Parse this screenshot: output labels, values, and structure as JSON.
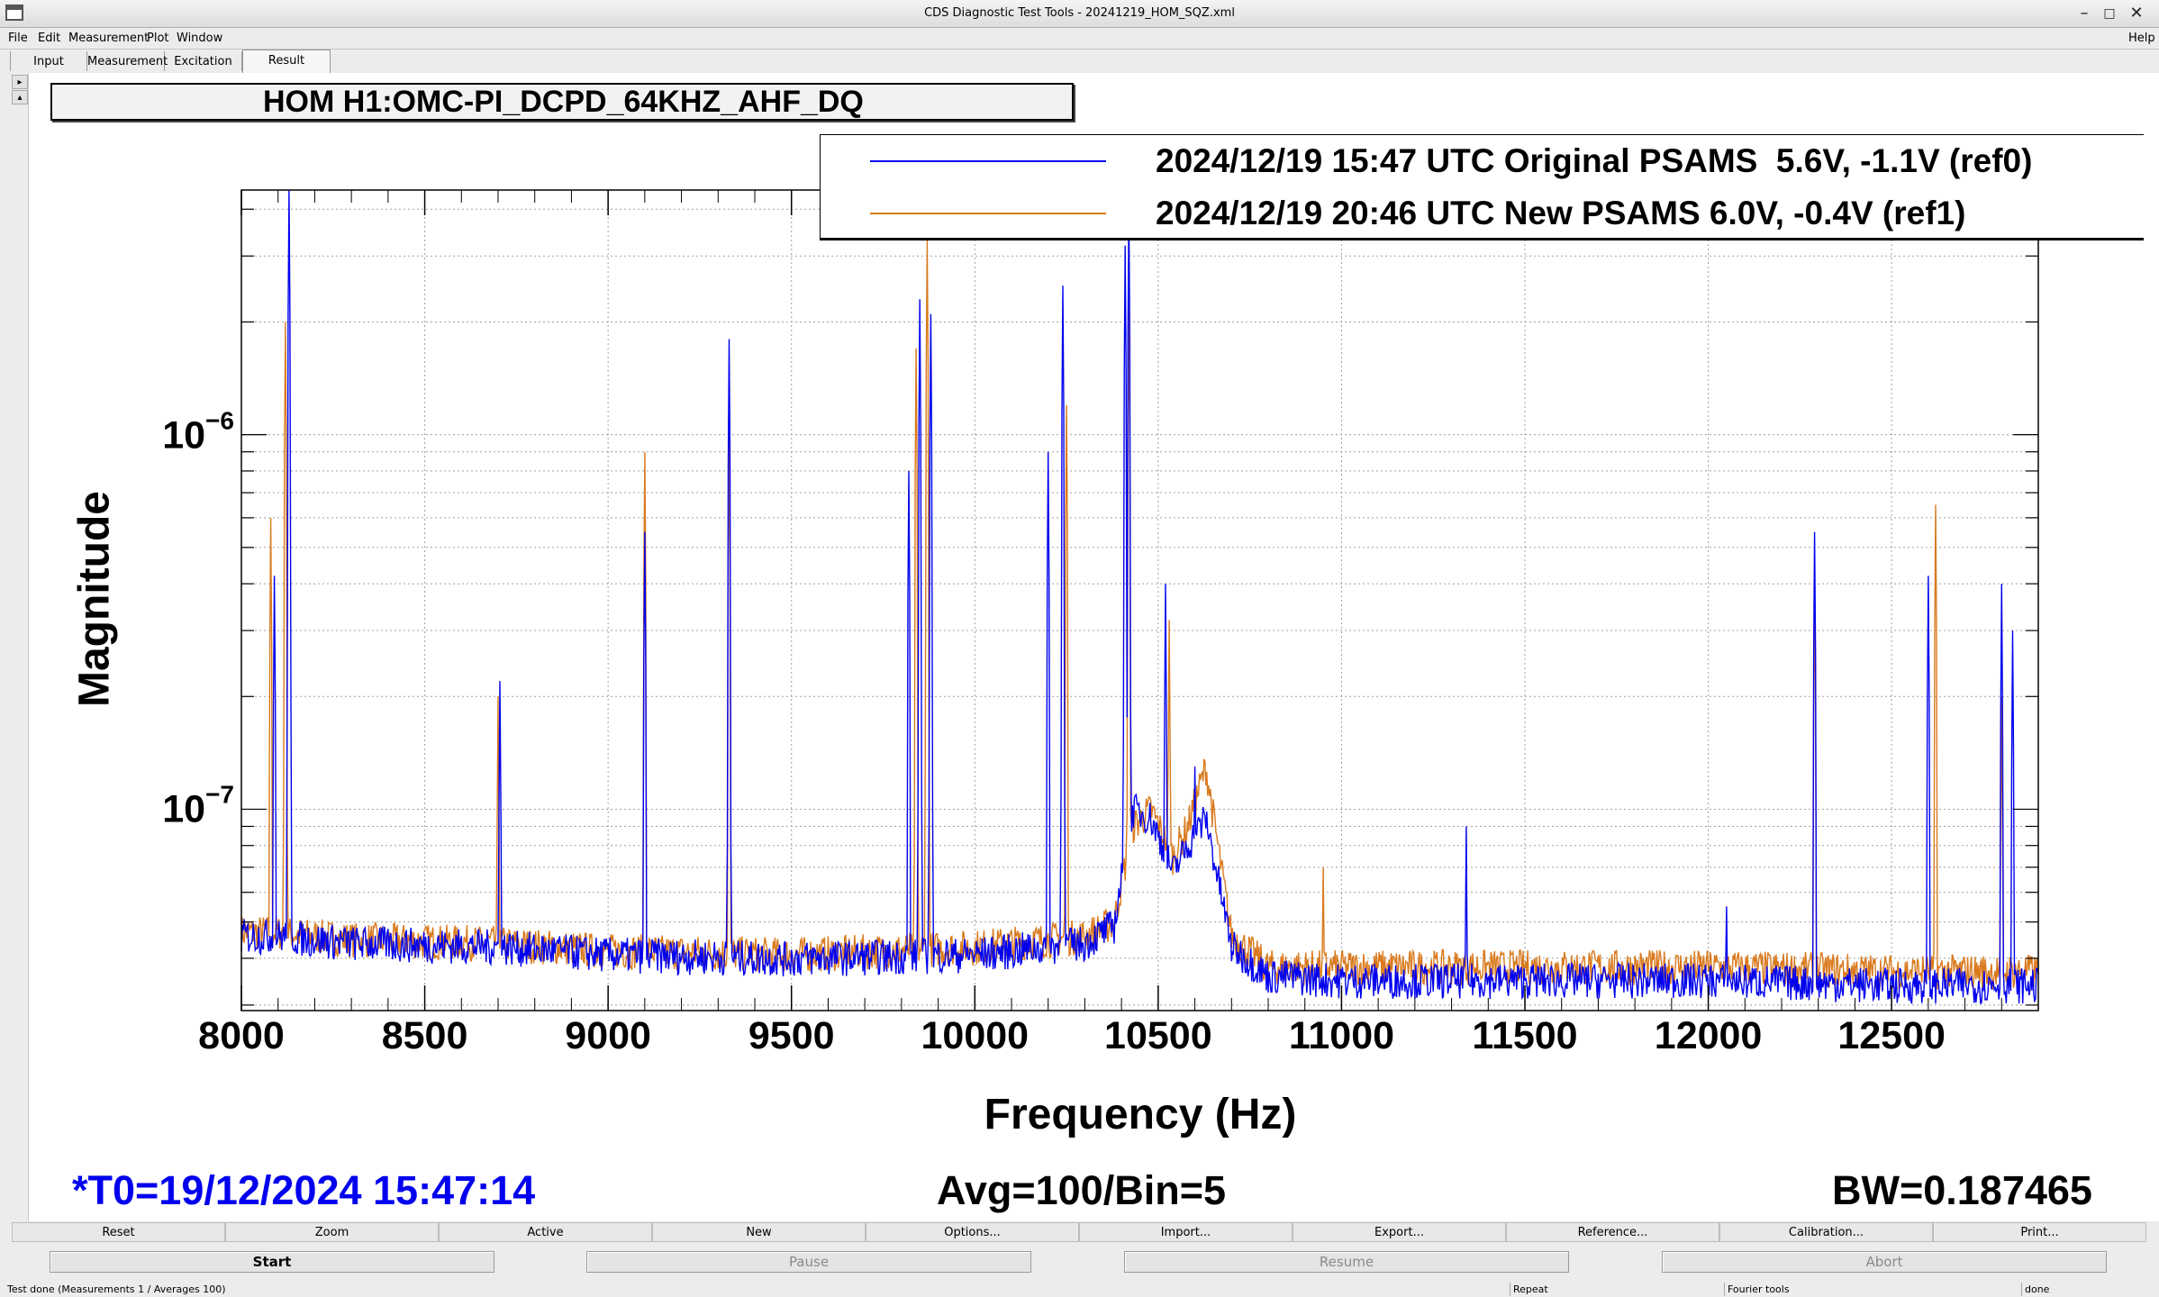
{
  "window": {
    "title": "CDS Diagnostic Test Tools - 20241219_HOM_SQZ.xml"
  },
  "menu": [
    {
      "label": "File"
    },
    {
      "label": "Edit"
    },
    {
      "label": "Measurement"
    },
    {
      "label": "Plot"
    },
    {
      "label": "Window"
    }
  ],
  "help_label": "Help",
  "tabs": [
    {
      "label": "Input"
    },
    {
      "label": "Measurement"
    },
    {
      "label": "Excitation"
    },
    {
      "label": "Result"
    }
  ],
  "plot": {
    "title": "HOM H1:OMC-PI_DCPD_64KHZ_AHF_DQ"
  },
  "legend": [
    {
      "label": "2024/12/19 15:47 UTC Original PSAMS  5.6V, -1.1V (ref0)",
      "color": "#0000ee"
    },
    {
      "label": "2024/12/19 20:46 UTC New PSAMS 6.0V, -0.4V (ref1)",
      "color": "#d97a1e"
    }
  ],
  "info": {
    "t0": "*T0=19/12/2024 15:47:14",
    "avg": "Avg=100/Bin=5",
    "bw": "BW=0.187465"
  },
  "toolbar_buttons": [
    {
      "label": "Reset"
    },
    {
      "label": "Zoom"
    },
    {
      "label": "Active"
    },
    {
      "label": "New"
    },
    {
      "label": "Options..."
    },
    {
      "label": "Import..."
    },
    {
      "label": "Export..."
    },
    {
      "label": "Reference..."
    },
    {
      "label": "Calibration..."
    },
    {
      "label": "Print..."
    }
  ],
  "control_buttons": [
    {
      "label": "Start"
    },
    {
      "label": "Pause"
    },
    {
      "label": "Resume"
    },
    {
      "label": "Abort"
    }
  ],
  "status": [
    {
      "label": "Test done (Measurements 1 / Averages 100)"
    },
    {
      "label": "Repeat"
    },
    {
      "label": "Fourier tools"
    },
    {
      "label": "done"
    }
  ],
  "chart_data": {
    "type": "line",
    "xlabel": "Frequency (Hz)",
    "ylabel": "Magnitude",
    "xlim": [
      8000,
      12900
    ],
    "ylim": [
      2.9e-08,
      4.5e-06
    ],
    "yscale": "log",
    "grid": true,
    "x_ticks": [
      8000,
      8500,
      9000,
      9500,
      10000,
      10500,
      11000,
      11500,
      12000,
      12500
    ],
    "y_tick_labels": [
      {
        "base": "10",
        "exp": "−6",
        "value": 1e-06
      },
      {
        "base": "10",
        "exp": "−7",
        "value": 1e-07
      }
    ],
    "legend_position": "top-right",
    "series": [
      {
        "name": "2024/12/19 15:47 UTC Original PSAMS  5.6V, -1.1V (ref0)",
        "color": "#0000ee",
        "floor": [
          [
            8000,
            4.6e-08
          ],
          [
            8100,
            4.6e-08
          ],
          [
            8300,
            4.4e-08
          ],
          [
            8700,
            4.3e-08
          ],
          [
            9000,
            4.1e-08
          ],
          [
            9500,
            4e-08
          ],
          [
            10000,
            4.1e-08
          ],
          [
            10300,
            4.4e-08
          ],
          [
            10380,
            4.9e-08
          ],
          [
            10430,
            1e-07
          ],
          [
            10480,
            9.5e-08
          ],
          [
            10540,
            6.8e-08
          ],
          [
            10580,
            8e-08
          ],
          [
            10630,
            9.5e-08
          ],
          [
            10700,
            4.3e-08
          ],
          [
            10800,
            3.6e-08
          ],
          [
            11000,
            3.5e-08
          ],
          [
            11500,
            3.5e-08
          ],
          [
            12000,
            3.5e-08
          ],
          [
            12500,
            3.4e-08
          ],
          [
            12900,
            3.4e-08
          ]
        ],
        "peaks": [
          [
            8130,
            4.5e-06
          ],
          [
            8090,
            4.2e-07
          ],
          [
            8705,
            2.2e-07
          ],
          [
            9100,
            5.5e-07
          ],
          [
            9330,
            1.8e-06
          ],
          [
            9820,
            8e-07
          ],
          [
            9850,
            2.3e-06
          ],
          [
            9880,
            2.1e-06
          ],
          [
            10240,
            2.5e-06
          ],
          [
            10200,
            9e-07
          ],
          [
            10420,
            4e-06
          ],
          [
            10410,
            3.2e-06
          ],
          [
            10520,
            4e-07
          ],
          [
            10600,
            1.3e-07
          ],
          [
            11340,
            9e-08
          ],
          [
            12050,
            5.5e-08
          ],
          [
            12290,
            5.5e-07
          ],
          [
            12600,
            4.2e-07
          ],
          [
            12800,
            4e-07
          ],
          [
            12830,
            3e-07
          ]
        ]
      },
      {
        "name": "2024/12/19 20:46 UTC New PSAMS 6.0V, -0.4V (ref1)",
        "color": "#d97a1e",
        "floor": [
          [
            8000,
            4.7e-08
          ],
          [
            8100,
            4.7e-08
          ],
          [
            8300,
            4.5e-08
          ],
          [
            8700,
            4.4e-08
          ],
          [
            9000,
            4.2e-08
          ],
          [
            9500,
            4.1e-08
          ],
          [
            10000,
            4.3e-08
          ],
          [
            10300,
            4.6e-08
          ],
          [
            10380,
            5e-08
          ],
          [
            10430,
            9e-08
          ],
          [
            10480,
            1e-07
          ],
          [
            10540,
            7.5e-08
          ],
          [
            10580,
            9e-08
          ],
          [
            10630,
            1.3e-07
          ],
          [
            10700,
            4.6e-08
          ],
          [
            10800,
            3.8e-08
          ],
          [
            11000,
            3.8e-08
          ],
          [
            11500,
            3.8e-08
          ],
          [
            12000,
            3.8e-08
          ],
          [
            12500,
            3.7e-08
          ],
          [
            12900,
            3.7e-08
          ]
        ],
        "peaks": [
          [
            8120,
            2e-06
          ],
          [
            8080,
            6e-07
          ],
          [
            8700,
            2e-07
          ],
          [
            9100,
            9e-07
          ],
          [
            9330,
            1e-06
          ],
          [
            9870,
            3.3e-06
          ],
          [
            9840,
            1.7e-06
          ],
          [
            10250,
            1.2e-06
          ],
          [
            10420,
            2.2e-06
          ],
          [
            10530,
            3.2e-07
          ],
          [
            10950,
            7e-08
          ],
          [
            12290,
            4e-07
          ],
          [
            12620,
            6.5e-07
          ],
          [
            12800,
            2e-07
          ]
        ]
      }
    ]
  }
}
